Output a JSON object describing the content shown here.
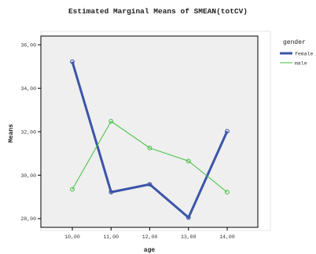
{
  "chart_data": {
    "type": "line",
    "title": "Estimated Marginal Means of SMEAN(totCV)",
    "xlabel": "age",
    "ylabel": "Means",
    "categories": [
      "10,00",
      "11,00",
      "12,00",
      "13,00",
      "14,00"
    ],
    "x": [
      10,
      11,
      12,
      13,
      14
    ],
    "yticks": [
      "28,00",
      "30,00",
      "32,00",
      "34,00",
      "36,00"
    ],
    "ylim": [
      27.6,
      36.4
    ],
    "grid": false,
    "legend_title": "gender",
    "legend_position": "right",
    "series": [
      {
        "name": "female",
        "color": "#3b55a8",
        "values": [
          35.22,
          29.22,
          29.58,
          28.05,
          32.02
        ]
      },
      {
        "name": "male",
        "color": "#3fbf3f",
        "values": [
          29.35,
          32.48,
          31.25,
          30.65,
          29.22
        ]
      }
    ]
  }
}
